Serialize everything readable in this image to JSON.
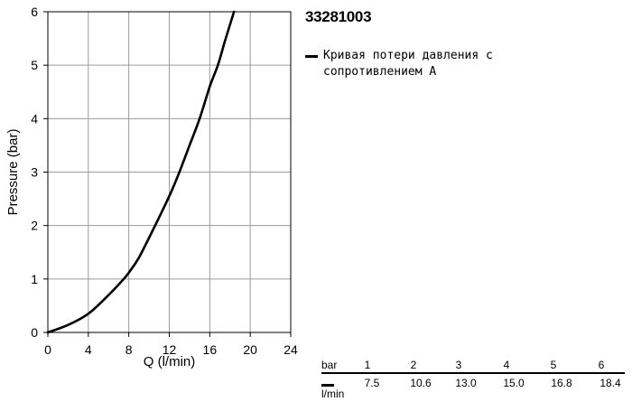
{
  "chart_data": {
    "type": "line",
    "title": "33281003",
    "xlabel": "Q (l/min)",
    "ylabel": "Pressure (bar)",
    "xlim": [
      0,
      24
    ],
    "ylim": [
      0,
      6
    ],
    "xticks": [
      0,
      4,
      8,
      12,
      16,
      20,
      24
    ],
    "yticks": [
      0,
      1,
      2,
      3,
      4,
      5,
      6
    ],
    "grid": true,
    "legend_position": "right",
    "series": [
      {
        "name": "Кривая потери давления с сопротивлением A",
        "color": "#000000",
        "x": [
          0,
          2,
          4,
          6,
          7.5,
          8,
          9,
          10.6,
          12,
          13.0,
          14,
          15.0,
          16,
          16.8,
          17.5,
          18.4
        ],
        "y": [
          0,
          0.14,
          0.35,
          0.7,
          1.0,
          1.12,
          1.4,
          2.0,
          2.55,
          3.0,
          3.5,
          4.0,
          4.6,
          5.0,
          5.45,
          6.0
        ]
      }
    ]
  },
  "flow_table": {
    "pressure_header": "bar",
    "flow_header": "l/min",
    "pressure": [
      "1",
      "2",
      "3",
      "4",
      "5",
      "6"
    ],
    "flow": [
      "7.5",
      "10.6",
      "13.0",
      "15.0",
      "16.8",
      "18.4"
    ]
  }
}
